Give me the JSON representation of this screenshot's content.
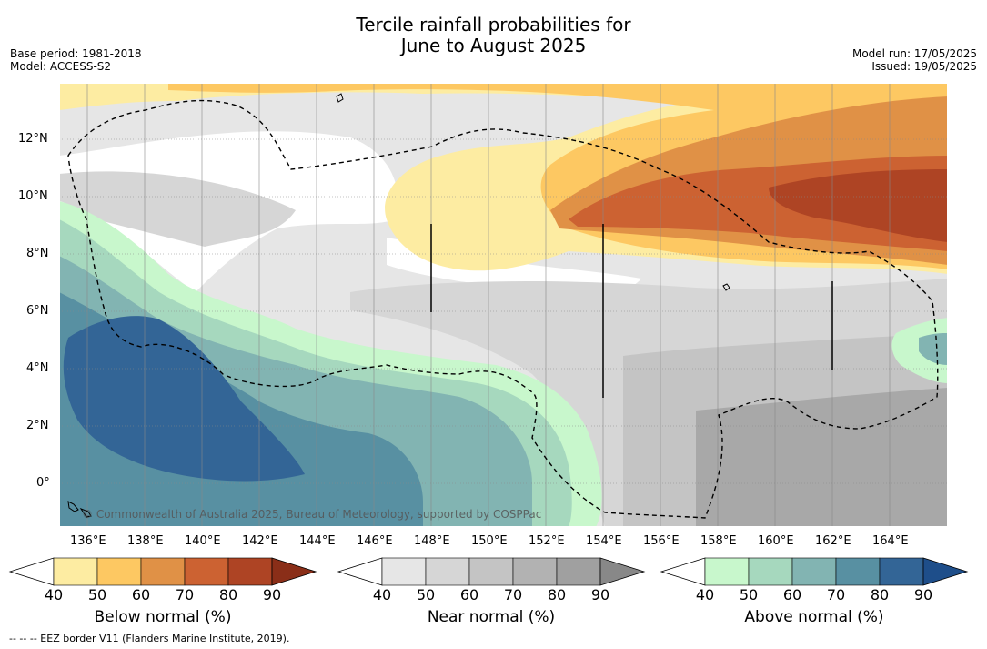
{
  "title": {
    "line1": "Tercile rainfall probabilities for",
    "line2": "June to August 2025"
  },
  "meta": {
    "base_period": "Base period: 1981-2018",
    "model": "Model: ACCESS-S2",
    "model_run": "Model run: 17/05/2025",
    "issued": "Issued: 19/05/2025"
  },
  "map": {
    "lat_labels": [
      "12°N",
      "10°N",
      "8°N",
      "6°N",
      "4°N",
      "2°N",
      "0°"
    ],
    "lon_labels": [
      "136°E",
      "138°E",
      "140°E",
      "142°E",
      "144°E",
      "146°E",
      "148°E",
      "150°E",
      "152°E",
      "154°E",
      "156°E",
      "158°E",
      "160°E",
      "162°E",
      "164°E"
    ],
    "copyright": "© Commonwealth of Australia 2025, Bureau of Meteorology, supported by COSPPac",
    "grid": true,
    "extent": {
      "lon": [
        134,
        165
      ],
      "lat": [
        -1.5,
        14
      ]
    }
  },
  "colorbars": [
    {
      "label": "Below normal (%)",
      "ticks": [
        "40",
        "50",
        "60",
        "70",
        "80",
        "90"
      ],
      "colors": [
        "#ffffff",
        "#fdeca2",
        "#fdc862",
        "#e09146",
        "#cc6232",
        "#ae4424",
        "#8a2e18"
      ]
    },
    {
      "label": "Near normal (%)",
      "ticks": [
        "40",
        "50",
        "60",
        "70",
        "80",
        "90"
      ],
      "colors": [
        "#ffffff",
        "#e6e6e6",
        "#d6d6d6",
        "#c4c4c4",
        "#b2b2b2",
        "#a0a0a0",
        "#888888"
      ]
    },
    {
      "label": "Above normal (%)",
      "ticks": [
        "40",
        "50",
        "60",
        "70",
        "80",
        "90"
      ],
      "colors": [
        "#ffffff",
        "#c8f7cc",
        "#a6d8be",
        "#82b4b2",
        "#5890a2",
        "#336596",
        "#1e4e8a"
      ]
    }
  ],
  "footer": "-- -- -- EEZ border V11 (Flanders Marine Institute, 2019)."
}
